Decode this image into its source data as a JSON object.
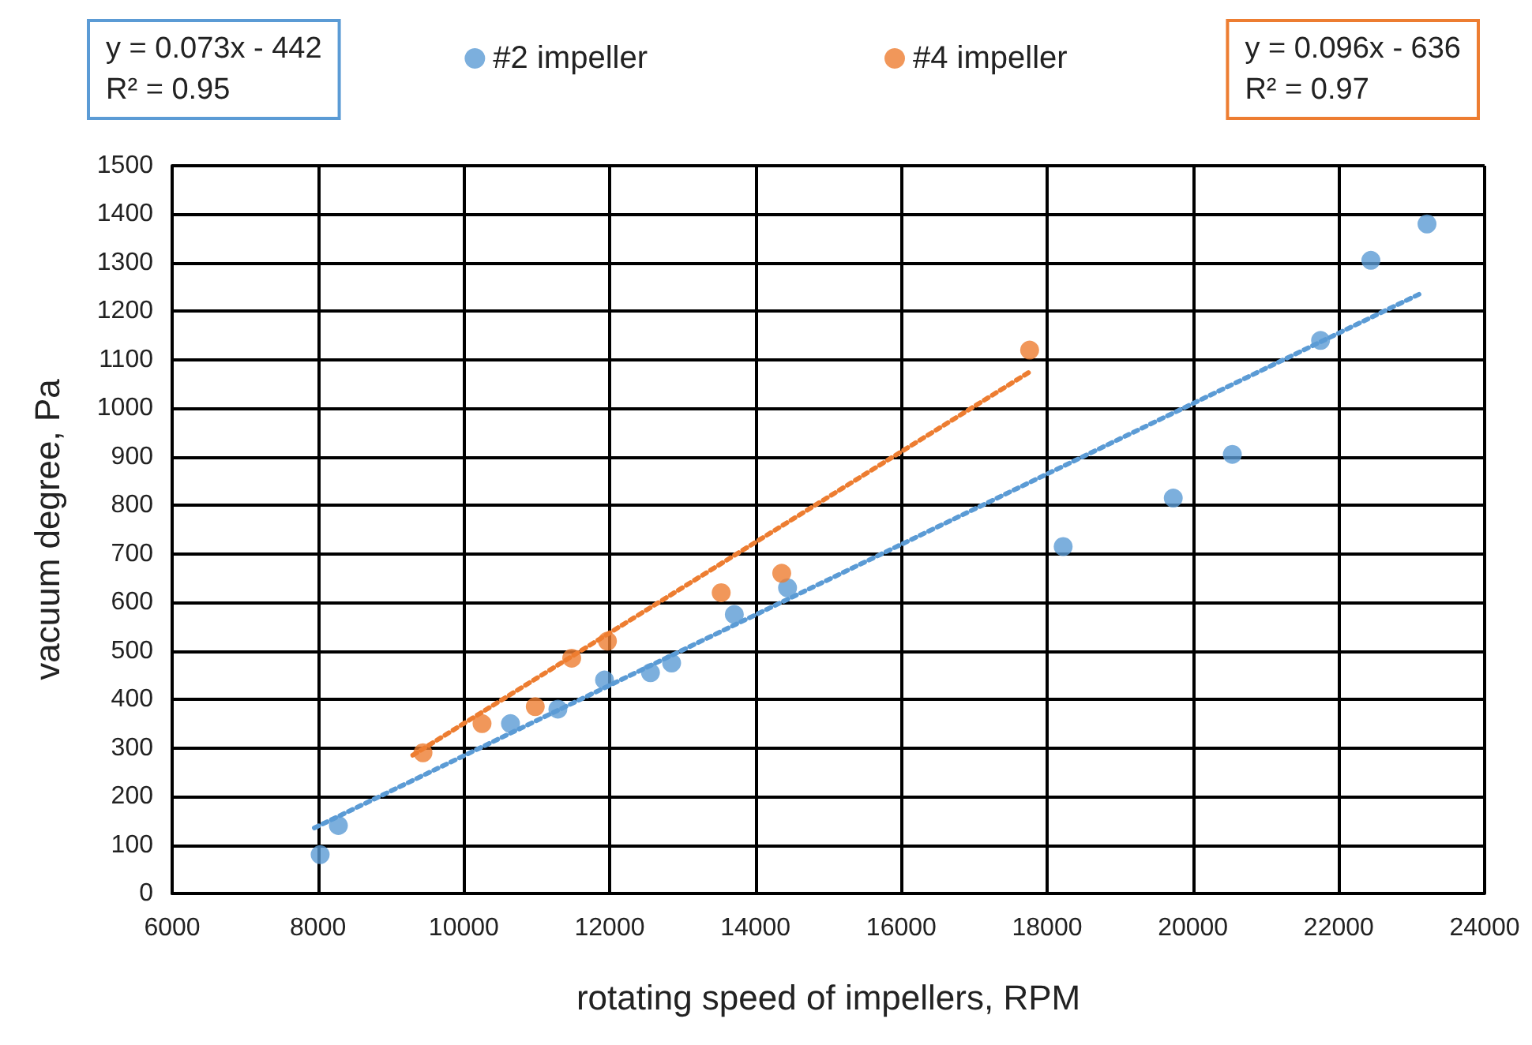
{
  "chart_data": {
    "type": "scatter",
    "xlabel": "rotating speed of impellers, RPM",
    "ylabel": "vacuum degree, Pa",
    "annotations": [
      "y = 0.073x - 442\nR² = 0.95",
      "y = 0.096x - 636\nR² = 0.97"
    ],
    "xlim": [
      6000,
      24000
    ],
    "xticks": [
      6000,
      8000,
      10000,
      12000,
      14000,
      16000,
      18000,
      20000,
      22000,
      24000
    ],
    "ylim": [
      0,
      1500
    ],
    "yticks": [
      0,
      100,
      200,
      300,
      400,
      500,
      600,
      700,
      800,
      900,
      1000,
      1100,
      1200,
      1300,
      1400,
      1500
    ],
    "grid": true,
    "legend": "top",
    "marker": "circle",
    "series": [
      {
        "name": "#2 impeller",
        "color": "#5b9bd5",
        "x": [
          8030,
          8280,
          10640,
          11290,
          11930,
          12560,
          12850,
          13710,
          14440,
          18220,
          19730,
          20540,
          21750,
          22440,
          23210
        ],
        "values": [
          80,
          140,
          350,
          380,
          440,
          455,
          475,
          575,
          630,
          715,
          815,
          905,
          1140,
          1305,
          1380
        ]
      },
      {
        "name": "#4 impeller",
        "color": "#ed7d31",
        "x": [
          9440,
          10250,
          10980,
          11480,
          11970,
          13530,
          14360,
          17760
        ],
        "values": [
          290,
          350,
          385,
          485,
          520,
          620,
          660,
          1120
        ]
      },
      {
        "type": "line",
        "color": "#5b9bd5",
        "line_style": "dotted",
        "marker": "none",
        "x": [
          7950,
          23100
        ],
        "values": [
          135,
          1235
        ]
      },
      {
        "type": "line",
        "color": "#ed7d31",
        "line_style": "dotted",
        "marker": "none",
        "x": [
          9300,
          17760
        ],
        "values": [
          285,
          1075
        ]
      }
    ]
  }
}
